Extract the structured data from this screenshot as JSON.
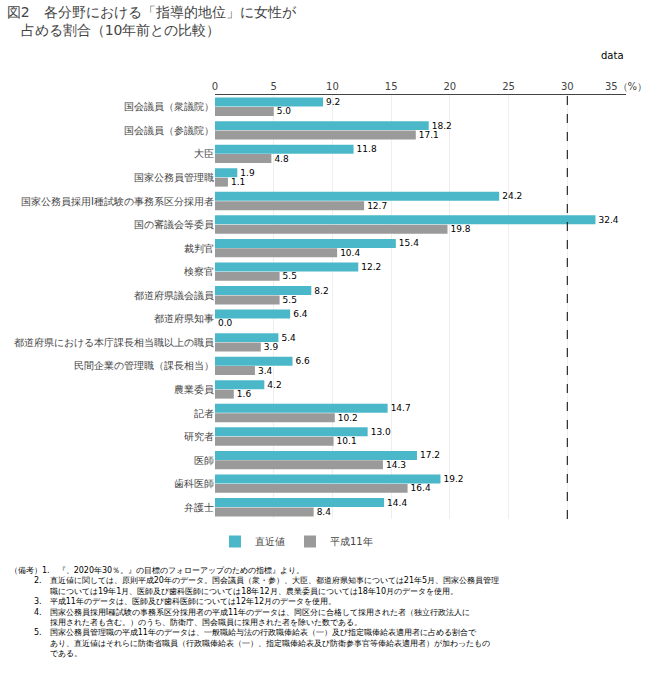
{
  "chart_data": {
    "type": "bar",
    "orientation": "horizontal",
    "title": "図2　各分野における「指導的地位」に女性が\n　占める割合（10年前との比較）",
    "categories": [
      "国会議員（衆議院）",
      "国会議員（参議院）",
      "大臣",
      "国家公務員管理職",
      "国家公務員採用Ⅰ種試験の事務系区分採用者",
      "国の審議会等委員",
      "裁判官",
      "検察官",
      "都道府県議会議員",
      "都道府県知事",
      "都道府県における本庁課長相当職以上の職員",
      "民間企業の管理職（課長相当）",
      "農業委員",
      "記者",
      "研究者",
      "医師",
      "歯科医師",
      "弁護士"
    ],
    "series": [
      {
        "name": "直近値",
        "color": "#4ab8c8",
        "values": [
          9.2,
          18.2,
          11.8,
          1.9,
          24.2,
          32.4,
          15.4,
          12.2,
          8.2,
          6.4,
          5.4,
          6.6,
          4.2,
          14.7,
          13.0,
          17.2,
          19.2,
          14.4
        ],
        "value_labels": [
          "9.2",
          "18.2",
          "11.8",
          "1.9",
          "24.2",
          "32.4",
          "15.4",
          "12.2",
          "8.2",
          "6.4",
          "5.4",
          "6.6",
          "4.2",
          "14.7",
          "13.0",
          "17.2",
          "19.2",
          "14.4"
        ]
      },
      {
        "name": "平成11年",
        "color": "#9a9a9a",
        "values": [
          5.0,
          17.1,
          4.8,
          1.1,
          12.7,
          19.8,
          10.4,
          5.5,
          5.5,
          0.0,
          3.9,
          3.4,
          1.6,
          10.2,
          10.1,
          14.3,
          16.4,
          8.4
        ],
        "value_labels": [
          "5.0",
          "17.1",
          "4.8",
          "1.1",
          "12.7",
          "19.8",
          "10.4",
          "5.5",
          "5.5",
          "0.0",
          "3.9",
          "3.4",
          "1.6",
          "10.2",
          "10.1",
          "14.3",
          "16.4",
          "8.4"
        ]
      }
    ],
    "xlim": [
      0,
      35
    ],
    "xticks": [
      0,
      5,
      10,
      15,
      20,
      25,
      30,
      {
        "value": 35,
        "label": "35（%）"
      }
    ],
    "reference_line": 30,
    "grid": true,
    "legend": "bottom",
    "data_labels": true,
    "annotations": [
      "data",
      "（備考）1.　『、2020年30％。』の目標のフォローアップのための指標』より。\n　　　2.　直近値に関しては、原則平成20年のデータ。国会議員（衆・参）、大臣、都道府県知事については21年5月、国家公務員管理\n　　　　　職については19年1月、医師及び歯科医師については18年12月、農業委員については18年10月のデータを使用。\n　　　3.　平成11年のデータは、医師及び歯科医師については12年12月のデータを使用。\n　　　4.　国家公務員採用Ⅰ種試験の事務系区分採用者の平成11年のデータは、同区分に合格して採用された者（独立行政法人に\n　　　　　採用された者も含む。）のうち、防衛庁、国会職員に採用された者を除いた数である。\n　　　5.　国家公務員管理職の平成11年のデータは、一般職給与法の行政職俸給表（一）及び指定職俸給表適用者に占める割合で\n　　　　　あり、直近値はそれらに防衛省職員（行政職俸給表（一）、指定職俸給表及び防衛参事官等俸給表適用者）が加わったもの\n　　　　　である。"
    ]
  }
}
